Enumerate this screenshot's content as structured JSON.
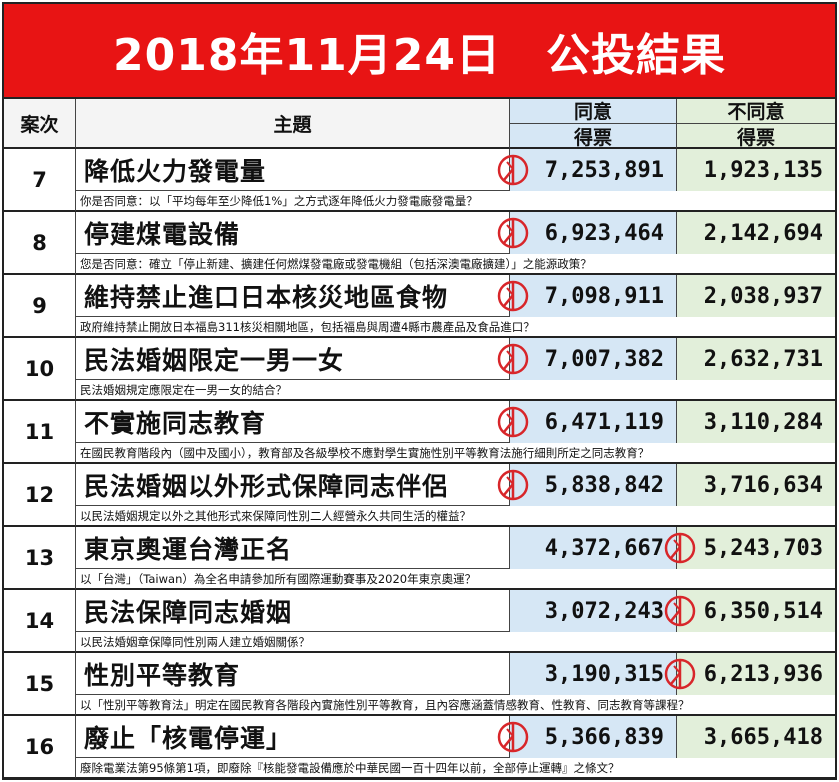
{
  "title": "2018年11月24日　公投結果",
  "headers": {
    "case": "案次",
    "topic": "主題",
    "agree": "同意",
    "disagree": "不同意",
    "votes": "得票"
  },
  "colors": {
    "title_bg": "#e81414",
    "agree_bg": "#d6e7f5",
    "disagree_bg": "#e2efda",
    "stamp": "#d8262a"
  },
  "rows": [
    {
      "case": "7",
      "topic": "降低火力發電量",
      "agree": "7,253,891",
      "disagree": "1,923,135",
      "winner": "agree",
      "desc": "你是否同意：以「平均每年至少降低1%」之方式逐年降低火力發電廠發電量？"
    },
    {
      "case": "8",
      "topic": "停建煤電設備",
      "agree": "6,923,464",
      "disagree": "2,142,694",
      "winner": "agree",
      "desc": "您是否同意：確立「停止新建、擴建任何燃煤發電廠或發電機組（包括深澳電廠擴建）」之能源政策？"
    },
    {
      "case": "9",
      "topic": "維持禁止進口日本核災地區食物",
      "agree": "7,098,911",
      "disagree": "2,038,937",
      "winner": "agree",
      "desc": "政府維持禁止開放日本福島311核災相關地區，包括福島與周遭4縣市農產品及食品進口？"
    },
    {
      "case": "10",
      "topic": "民法婚姻限定一男一女",
      "agree": "7,007,382",
      "disagree": "2,632,731",
      "winner": "agree",
      "desc": "民法婚姻規定應限定在一男一女的結合？"
    },
    {
      "case": "11",
      "topic": "不實施同志教育",
      "agree": "6,471,119",
      "disagree": "3,110,284",
      "winner": "agree",
      "desc": "在國民教育階段內（國中及國小），教育部及各級學校不應對學生實施性別平等教育法施行細則所定之同志教育？"
    },
    {
      "case": "12",
      "topic": "民法婚姻以外形式保障同志伴侶",
      "agree": "5,838,842",
      "disagree": "3,716,634",
      "winner": "agree",
      "desc": "以民法婚姻規定以外之其他形式來保障同性別二人經營永久共同生活的權益？"
    },
    {
      "case": "13",
      "topic": "東京奧運台灣正名",
      "agree": "4,372,667",
      "disagree": "5,243,703",
      "winner": "disagree",
      "desc": "以「台灣」（Taiwan）為全名申請參加所有國際運動賽事及2020年東京奧運？"
    },
    {
      "case": "14",
      "topic": "民法保障同志婚姻",
      "agree": "3,072,243",
      "disagree": "6,350,514",
      "winner": "disagree",
      "desc": "以民法婚姻章保障同性別兩人建立婚姻關係？"
    },
    {
      "case": "15",
      "topic": "性別平等教育",
      "agree": "3,190,315",
      "disagree": "6,213,936",
      "winner": "disagree",
      "desc": "以「性別平等教育法」明定在國民教育各階段內實施性別平等教育，且內容應涵蓋情感教育、性教育、同志教育等課程？"
    },
    {
      "case": "16",
      "topic": "廢止「核電停運」",
      "agree": "5,366,839",
      "disagree": "3,665,418",
      "winner": "agree",
      "desc": "廢除電業法第95條第1項，即廢除『核能發電設備應於中華民國一百十四年以前，全部停止運轉』之條文？"
    }
  ]
}
